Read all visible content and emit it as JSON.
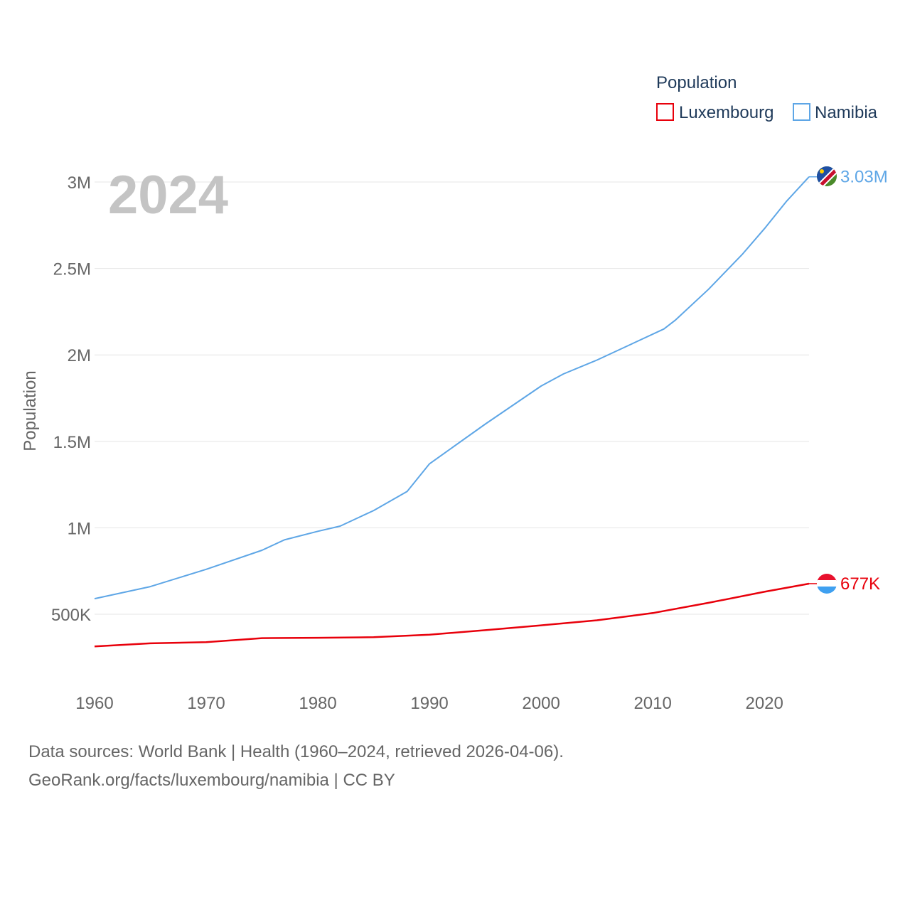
{
  "chart_data": {
    "type": "line",
    "year_label": "2024",
    "ylabel": "Population",
    "legend_title": "Population",
    "xlim": [
      1960,
      2024
    ],
    "ylim": [
      180000,
      3200000
    ],
    "x_ticks": [
      1960,
      1970,
      1980,
      1990,
      2000,
      2010,
      2020
    ],
    "y_ticks": [
      {
        "value": 500000,
        "label": "500K"
      },
      {
        "value": 1000000,
        "label": "1M"
      },
      {
        "value": 1500000,
        "label": "1.5M"
      },
      {
        "value": 2000000,
        "label": "2M"
      },
      {
        "value": 2500000,
        "label": "2.5M"
      },
      {
        "value": 3000000,
        "label": "3M"
      }
    ],
    "series": [
      {
        "name": "Luxembourg",
        "color": "#e8000b",
        "end_label": "677K",
        "flag": "luxembourg-flag",
        "points": [
          [
            1960,
            314000
          ],
          [
            1965,
            332000
          ],
          [
            1970,
            339000
          ],
          [
            1975,
            362000
          ],
          [
            1980,
            364000
          ],
          [
            1985,
            367000
          ],
          [
            1990,
            382000
          ],
          [
            1995,
            408000
          ],
          [
            2000,
            436000
          ],
          [
            2005,
            465000
          ],
          [
            2010,
            507000
          ],
          [
            2015,
            566000
          ],
          [
            2020,
            630000
          ],
          [
            2024,
            677000
          ]
        ]
      },
      {
        "name": "Namibia",
        "color": "#5ea6e6",
        "end_label": "3.03M",
        "flag": "namibia-flag",
        "points": [
          [
            1960,
            590000
          ],
          [
            1965,
            660000
          ],
          [
            1970,
            760000
          ],
          [
            1975,
            870000
          ],
          [
            1977,
            930000
          ],
          [
            1980,
            980000
          ],
          [
            1982,
            1010000
          ],
          [
            1985,
            1100000
          ],
          [
            1988,
            1210000
          ],
          [
            1990,
            1370000
          ],
          [
            1995,
            1600000
          ],
          [
            2000,
            1820000
          ],
          [
            2002,
            1890000
          ],
          [
            2005,
            1970000
          ],
          [
            2008,
            2060000
          ],
          [
            2011,
            2150000
          ],
          [
            2012,
            2200000
          ],
          [
            2015,
            2380000
          ],
          [
            2018,
            2580000
          ],
          [
            2020,
            2730000
          ],
          [
            2022,
            2890000
          ],
          [
            2024,
            3030000
          ]
        ]
      }
    ]
  },
  "footer": {
    "line1": "Data sources: World Bank | Health (1960–2024, retrieved 2026-04-06).",
    "line2": "GeoRank.org/facts/luxembourg/namibia | CC BY"
  }
}
